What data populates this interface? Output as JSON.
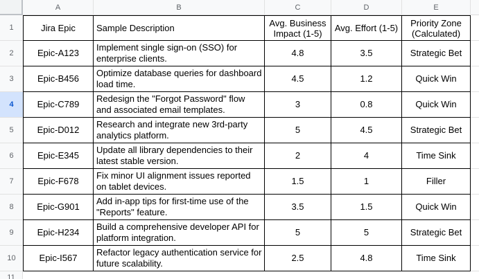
{
  "column_headers": [
    "A",
    "B",
    "C",
    "D",
    "E"
  ],
  "row_numbers": [
    "1",
    "2",
    "3",
    "4",
    "5",
    "6",
    "7",
    "8",
    "9",
    "10",
    "11"
  ],
  "selected_row": "4",
  "colors": {
    "selection_bg": "#d3e3fd",
    "selection_text": "#0b57d0",
    "header_bg": "#f8f9fa",
    "header_text": "#5f6368",
    "gridline": "#e1e1e1",
    "table_border": "#000000"
  },
  "table": {
    "headers": {
      "epic": "Jira Epic",
      "description": "Sample Description",
      "impact": "Avg. Business Impact (1-5)",
      "effort": "Avg. Effort (1-5)",
      "zone": "Priority Zone (Calculated)"
    },
    "rows": [
      {
        "row": "2",
        "epic": "Epic-A123",
        "description": "Implement single sign-on (SSO) for enterprise clients.",
        "impact": "4.8",
        "effort": "3.5",
        "zone": "Strategic Bet"
      },
      {
        "row": "3",
        "epic": "Epic-B456",
        "description": "Optimize database queries for dashboard load time.",
        "impact": "4.5",
        "effort": "1.2",
        "zone": "Quick Win"
      },
      {
        "row": "4",
        "epic": "Epic-C789",
        "description": "Redesign the \"Forgot Password\" flow and associated email templates.",
        "impact": "3",
        "effort": "0.8",
        "zone": "Quick Win"
      },
      {
        "row": "5",
        "epic": "Epic-D012",
        "description": "Research and integrate new 3rd-party analytics platform.",
        "impact": "5",
        "effort": "4.5",
        "zone": "Strategic Bet"
      },
      {
        "row": "6",
        "epic": "Epic-E345",
        "description": "Update all library dependencies to their latest stable version.",
        "impact": "2",
        "effort": "4",
        "zone": "Time Sink"
      },
      {
        "row": "7",
        "epic": "Epic-F678",
        "description": "Fix minor UI alignment issues reported on tablet devices.",
        "impact": "1.5",
        "effort": "1",
        "zone": "Filler"
      },
      {
        "row": "8",
        "epic": "Epic-G901",
        "description": "Add in-app tips for first-time use of the \"Reports\" feature.",
        "impact": "3.5",
        "effort": "1.5",
        "zone": "Quick Win"
      },
      {
        "row": "9",
        "epic": "Epic-H234",
        "description": "Build a comprehensive developer API for platform integration.",
        "impact": "5",
        "effort": "5",
        "zone": "Strategic Bet"
      },
      {
        "row": "10",
        "epic": "Epic-I567",
        "description": "Refactor legacy authentication service for future scalability.",
        "impact": "2.5",
        "effort": "4.8",
        "zone": "Time Sink"
      }
    ]
  }
}
